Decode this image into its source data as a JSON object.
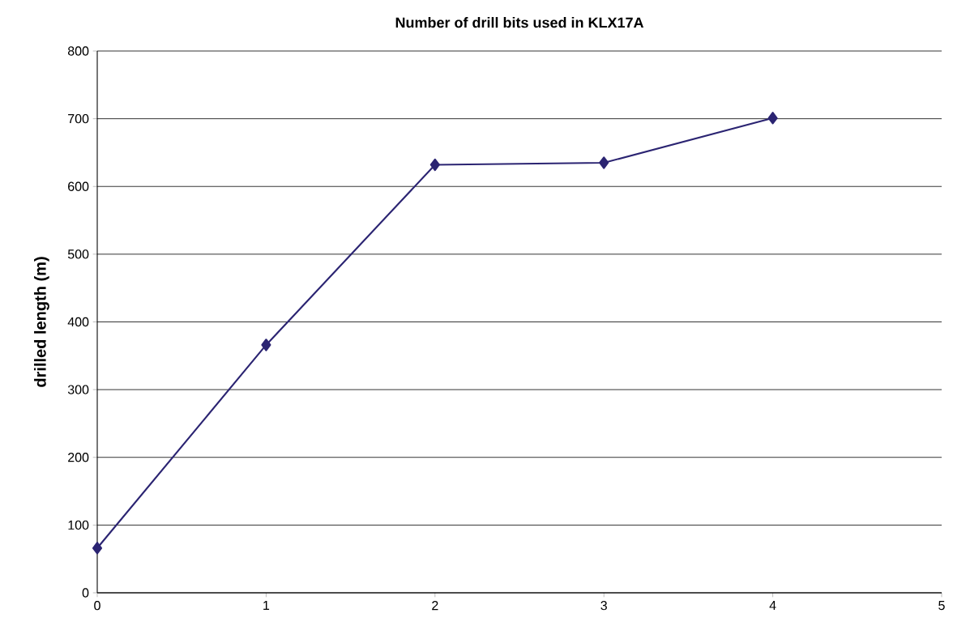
{
  "chart_data": {
    "type": "line",
    "title": "Number of drill bits used in KLX17A",
    "ylabel": "drilled length (m)",
    "x": [
      0,
      1,
      2,
      3,
      4
    ],
    "series": [
      {
        "color": "#2b2472",
        "values": [
          66,
          366,
          632,
          635,
          701
        ]
      }
    ],
    "xlim": [
      0,
      5
    ],
    "xticks": [
      0,
      1,
      2,
      3,
      4,
      5
    ],
    "ylim": [
      0,
      800
    ],
    "yticks": [
      0,
      100,
      200,
      300,
      400,
      500,
      600,
      700,
      800
    ],
    "grid": "y",
    "marker": "diamond",
    "line_style": "solid"
  }
}
